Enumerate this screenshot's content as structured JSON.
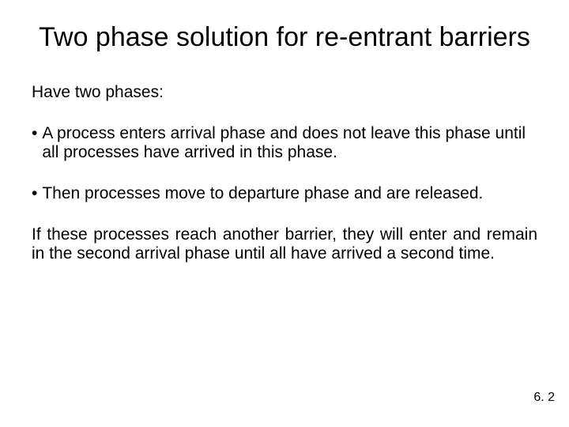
{
  "title_fontsize": 34,
  "body_fontsize": 21,
  "pagenum_fontsize": 16,
  "text_color": "#000000",
  "background_color": "#ffffff",
  "title": "Two phase solution for re-entrant barriers",
  "intro": "Have two phases:",
  "bullets": [
    "A process enters arrival phase and does not leave this phase until all processes have arrived in this phase.",
    "Then processes move to departure phase and are released."
  ],
  "closing": "If these processes reach another barrier, they will enter and remain in the second arrival phase until all have arrived a second time.",
  "page_number": "6. 2"
}
